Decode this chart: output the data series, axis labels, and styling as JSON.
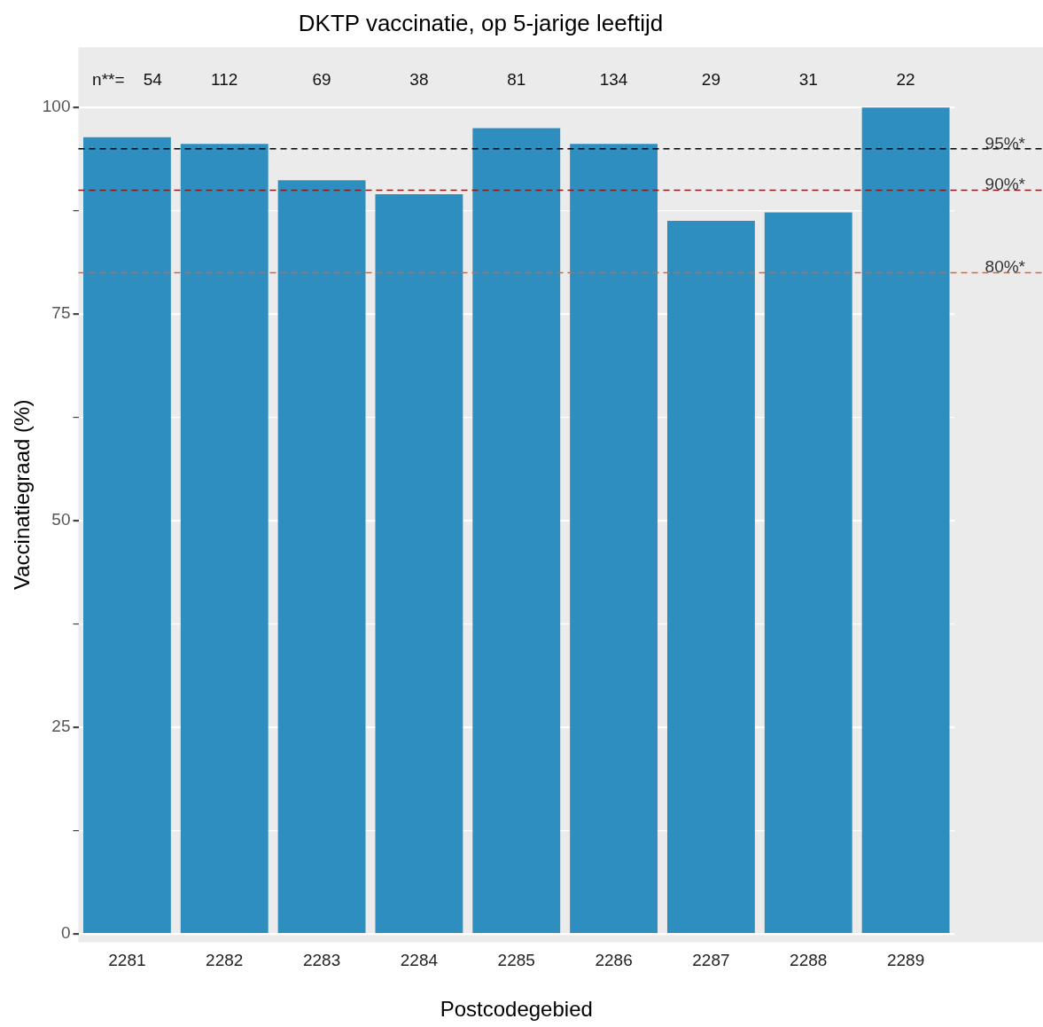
{
  "chart_data": {
    "type": "bar",
    "title": "DKTP vaccinatie, op 5-jarige leeftijd",
    "xlabel": "Postcodegebied",
    "ylabel": "Vaccinatiegraad (%)",
    "categories": [
      "2281",
      "2282",
      "2283",
      "2284",
      "2285",
      "2286",
      "2287",
      "2288",
      "2289"
    ],
    "values": [
      96.4,
      95.6,
      91.2,
      89.5,
      97.5,
      95.6,
      86.3,
      87.3,
      100
    ],
    "color": "#2e8ebf",
    "ylim": [
      -1,
      107.3
    ],
    "yticks": [
      0,
      {
        "value": 12.5,
        "label": null
      },
      25,
      {
        "value": 37.5,
        "label": null
      },
      50,
      {
        "value": 62.5,
        "label": null
      },
      75,
      {
        "value": 87.5,
        "label": null
      },
      100
    ],
    "grid": "y",
    "ref_lines": [
      {
        "axis": "y",
        "value": 95,
        "label": "95%*",
        "color": "#000000",
        "line_style": "dashed"
      },
      {
        "axis": "y",
        "value": 90,
        "label": "90%*",
        "color": "#8b1a1a",
        "line_style": "dashed"
      },
      {
        "axis": "y",
        "value": 80,
        "label": "80%*",
        "color": "#e8602c",
        "line_style": "dashed"
      }
    ],
    "annotations": [
      "n**=    54",
      "112",
      "69",
      "38",
      "81",
      "134",
      "29",
      "31",
      "22"
    ]
  }
}
